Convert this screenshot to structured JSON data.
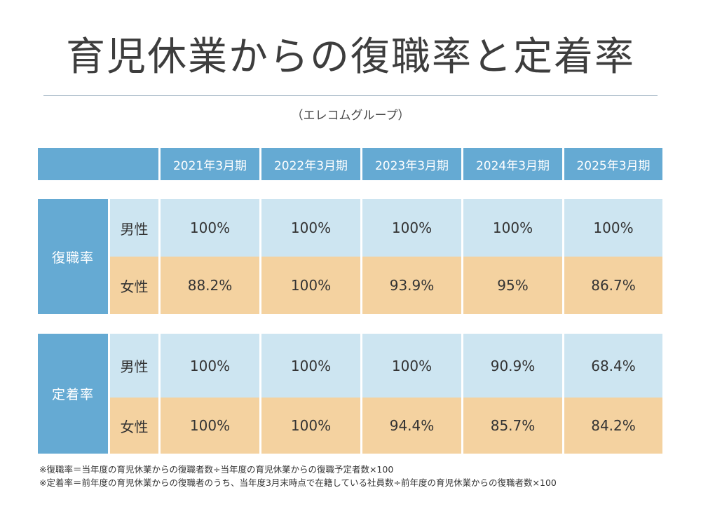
{
  "title": "育児休業からの復職率と定着率",
  "subtitle": "（エレコムグループ）",
  "columns": [
    "2021年3月期",
    "2022年3月期",
    "2023年3月期",
    "2024年3月期",
    "2025年3月期"
  ],
  "groups": [
    {
      "label": "復職率",
      "rows": [
        {
          "label": "男性",
          "values": [
            "100%",
            "100%",
            "100%",
            "100%",
            "100%"
          ]
        },
        {
          "label": "女性",
          "values": [
            "88.2%",
            "100%",
            "93.9%",
            "95%",
            "86.7%"
          ]
        }
      ]
    },
    {
      "label": "定着率",
      "rows": [
        {
          "label": "男性",
          "values": [
            "100%",
            "100%",
            "100%",
            "90.9%",
            "68.4%"
          ]
        },
        {
          "label": "女性",
          "values": [
            "100%",
            "100%",
            "94.4%",
            "85.7%",
            "84.2%"
          ]
        }
      ]
    }
  ],
  "notes": [
    "※復職率＝当年度の育児休業からの復職者数÷当年度の育児休業からの復職予定者数×100",
    "※定着率＝前年度の育児休業からの復職者のうち、当年度3月末時点で在籍している社員数÷前年度の育児休業からの復職者数×100"
  ],
  "colors": {
    "header": "#65aad3",
    "male_row": "#cde5f1",
    "female_row": "#f4d2a0"
  }
}
